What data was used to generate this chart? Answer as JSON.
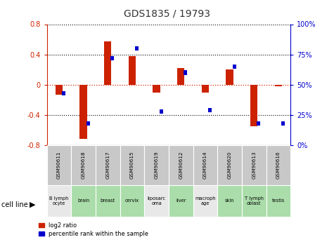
{
  "title": "GDS1835 / 19793",
  "samples": [
    "GSM90611",
    "GSM90618",
    "GSM90617",
    "GSM90615",
    "GSM90619",
    "GSM90612",
    "GSM90614",
    "GSM90620",
    "GSM90613",
    "GSM90616"
  ],
  "cell_types": [
    "B lymph\nocyte",
    "brain",
    "breast",
    "cervix",
    "liposarc\noma",
    "liver",
    "macroph\nage",
    "skin",
    "T lymph\noblast",
    "testis"
  ],
  "log2_ratio": [
    -0.13,
    -0.72,
    0.57,
    0.38,
    -0.1,
    0.22,
    -0.1,
    0.2,
    -0.55,
    -0.02
  ],
  "percentile": [
    43,
    18,
    72,
    80,
    28,
    60,
    29,
    65,
    18,
    18
  ],
  "cell_colors": [
    "#e8e8e8",
    "#aaddaa",
    "#aaddaa",
    "#aaddaa",
    "#e8e8e8",
    "#aaddaa",
    "#e8e8e8",
    "#aaddaa",
    "#aaddaa",
    "#aaddaa"
  ],
  "sample_bg": "#c8c8c8",
  "bar_color": "#cc2200",
  "blue_color": "#0000cc",
  "ylim": [
    -0.8,
    0.8
  ],
  "yticks": [
    -0.8,
    -0.4,
    0.0,
    0.4,
    0.8
  ],
  "y2ticks": [
    0,
    25,
    50,
    75,
    100
  ],
  "red_color": "#cc2200",
  "title_fontsize": 10
}
